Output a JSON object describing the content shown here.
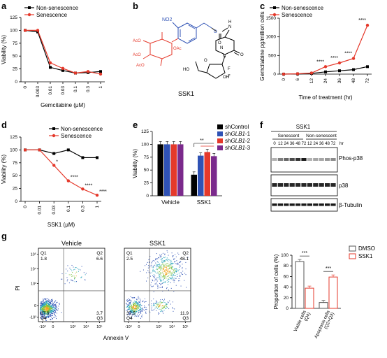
{
  "panels": {
    "a": "a",
    "b": "b",
    "c": "c",
    "d": "d",
    "e": "e",
    "f": "f",
    "g": "g"
  },
  "colors": {
    "non_senescence": "#000000",
    "senescence": "#e5392b",
    "shControl": "#000000",
    "shGLB1_1": "#2f52b5",
    "shGLB1_2": "#e5392b",
    "shGLB1_3": "#7b2a8c",
    "dmso": "#555555",
    "ssk1": "#e5392b"
  },
  "molecule": {
    "label": "SSK1",
    "atoms": [
      "NO2",
      "O",
      "O",
      "N",
      "H",
      "N",
      "N",
      "O",
      "OH",
      "F",
      "F",
      "O",
      "OAc",
      "AcO",
      "AcO",
      "AcO",
      "HO"
    ]
  },
  "blot": {
    "title": "SSK1",
    "group_senescent": "Senescent",
    "group_non": "Non-senescent",
    "hr_label": "hr",
    "times": [
      "0",
      "12",
      "24",
      "36",
      "48",
      "72",
      "12",
      "24",
      "36",
      "48",
      "72"
    ],
    "rows": [
      "Phos-p38",
      "p38",
      "β-Tubulin"
    ]
  },
  "chart_data": [
    {
      "panel": "a",
      "type": "line",
      "ylabel": "Viability (%)",
      "xlabel": "Gemcitabine (μM)",
      "categories": [
        "0",
        "0.003",
        "0.01",
        "0.03",
        "0.1",
        "0.3",
        "1"
      ],
      "ylim": [
        0,
        125
      ],
      "yticks": [
        "0",
        "25",
        "50",
        "75",
        "100",
        "125"
      ],
      "series": [
        {
          "name": "Non-senescence",
          "values": [
            100,
            97,
            28,
            22,
            17,
            18,
            20
          ]
        },
        {
          "name": "Senescence",
          "values": [
            100,
            100,
            37,
            26,
            17,
            20,
            15
          ]
        }
      ]
    },
    {
      "panel": "c",
      "type": "line",
      "ylabel": "Gemcitabine pg/million cells",
      "xlabel": "Time of treatment (hr)",
      "categories": [
        "0",
        "6",
        "12",
        "24",
        "36",
        "48",
        "72"
      ],
      "ylim": [
        0,
        1500
      ],
      "yticks": [
        "0",
        "500",
        "1000",
        "1500"
      ],
      "series": [
        {
          "name": "Non-senescence",
          "values": [
            0,
            5,
            20,
            60,
            90,
            120,
            200
          ]
        },
        {
          "name": "Senescence",
          "values": [
            0,
            10,
            30,
            200,
            300,
            420,
            1310
          ]
        }
      ],
      "annotations": [
        "****",
        "****",
        "****",
        "****"
      ]
    },
    {
      "panel": "d",
      "type": "line",
      "ylabel": "Viability (%)",
      "xlabel": "SSK1 (μM)",
      "categories": [
        "0",
        "0.01",
        "0.03",
        "0.1",
        "0.3",
        "1"
      ],
      "ylim": [
        0,
        125
      ],
      "yticks": [
        "0",
        "25",
        "50",
        "75",
        "100",
        "125"
      ],
      "series": [
        {
          "name": "Non-senescence",
          "values": [
            100,
            100,
            93,
            100,
            85,
            85
          ]
        },
        {
          "name": "Senescence",
          "values": [
            100,
            100,
            70,
            40,
            24,
            12
          ]
        }
      ],
      "annotations": [
        "*",
        "****",
        "****",
        "****"
      ]
    },
    {
      "panel": "e",
      "type": "bar",
      "ylabel": "Viability (%)",
      "categories": [
        "Vehicle",
        "SSK1"
      ],
      "ylim": [
        0,
        125
      ],
      "yticks": [
        "0",
        "25",
        "50",
        "75",
        "100",
        "125"
      ],
      "series": [
        {
          "name": "shControl",
          "values": [
            100,
            41
          ]
        },
        {
          "name": "shGLB1-1",
          "values": [
            100,
            78
          ]
        },
        {
          "name": "shGLB1-2",
          "values": [
            100,
            85
          ]
        },
        {
          "name": "shGLB1-3",
          "values": [
            100,
            77
          ]
        }
      ],
      "annotation": "**",
      "legend_prefix": "sh",
      "legend_suffixes": [
        "Control",
        "GLB1-1",
        "GLB1-2",
        "GLB1-3"
      ]
    },
    {
      "panel": "g-scatter",
      "type": "scatter",
      "xlabel": "Annexin V",
      "ylabel": "PI",
      "xticks": [
        "-10³",
        "0",
        "10³",
        "10⁴",
        "10⁵"
      ],
      "yticks": [
        "-10³",
        "0",
        "10³",
        "10⁴",
        "10⁵"
      ],
      "plots": [
        {
          "title": "Vehicle",
          "Q1": "Q1",
          "Q1v": "1.8",
          "Q2": "Q2",
          "Q2v": "6.6",
          "Q3": "Q3",
          "Q3v": "3.7",
          "Q4": "Q4",
          "Q4v": "87.9"
        },
        {
          "title": "SSK1",
          "Q1": "Q1",
          "Q1v": "2.5",
          "Q2": "Q2",
          "Q2v": "48.1",
          "Q3": "Q3",
          "Q3v": "11.9",
          "Q4": "Q4",
          "Q4v": "37.5"
        }
      ]
    },
    {
      "panel": "g-bar",
      "type": "bar",
      "ylabel": "Proportion of cells (%)",
      "categories": [
        "Viable cells (Q4)",
        "Apoptosis cells (Q2+Q3)"
      ],
      "category_lines": [
        [
          "Viable cells",
          "(Q4)"
        ],
        [
          "Apoptosis cells",
          "(Q2+Q3)"
        ]
      ],
      "ylim": [
        0,
        100
      ],
      "yticks": [
        "0",
        "20",
        "40",
        "60",
        "80",
        "100"
      ],
      "series": [
        {
          "name": "DMSO",
          "values": [
            88,
            11
          ]
        },
        {
          "name": "SSK1",
          "values": [
            38,
            59
          ]
        }
      ],
      "annotations": [
        "***",
        "***"
      ]
    }
  ]
}
